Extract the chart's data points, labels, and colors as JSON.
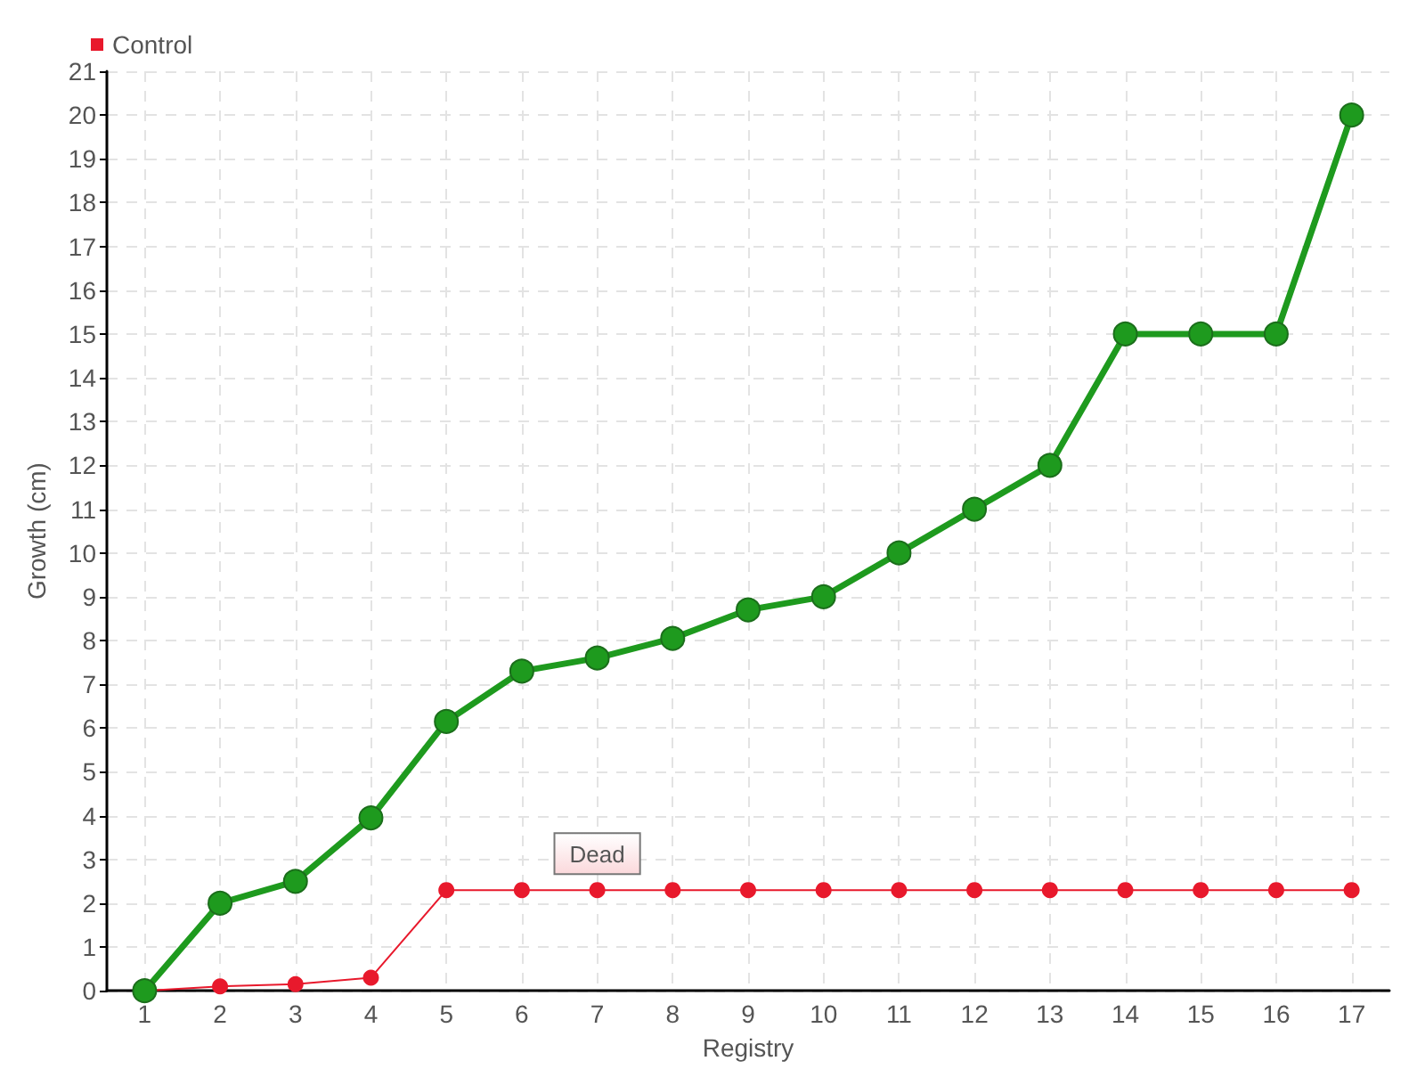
{
  "chart_data": {
    "type": "line",
    "xlabel": "Registry",
    "ylabel": "Growth (cm)",
    "categories": [
      "1",
      "2",
      "3",
      "4",
      "5",
      "6",
      "7",
      "8",
      "9",
      "10",
      "11",
      "12",
      "13",
      "14",
      "15",
      "16",
      "17"
    ],
    "series": [
      {
        "color": "#1e9a1e",
        "values": [
          0,
          2,
          2.5,
          3.95,
          6.15,
          7.3,
          7.6,
          8.05,
          8.7,
          9,
          10,
          11,
          12,
          15,
          15,
          15,
          20
        ]
      },
      {
        "name": "Control",
        "color": "#e8192c",
        "values": [
          0,
          0.1,
          0.15,
          0.3,
          2.3,
          2.3,
          2.3,
          2.3,
          2.3,
          2.3,
          2.3,
          2.3,
          2.3,
          2.3,
          2.3,
          2.3,
          2.3
        ]
      }
    ],
    "ylim": [
      0,
      21
    ],
    "yticks": [
      0,
      1,
      2,
      3,
      4,
      5,
      6,
      7,
      8,
      9,
      10,
      11,
      12,
      13,
      14,
      15,
      16,
      17,
      18,
      19,
      20,
      21
    ],
    "annotations": [
      {
        "text": "Dead",
        "x": "7",
        "y": 2.3
      }
    ],
    "grid": true,
    "legend": "top left",
    "marker": "circle",
    "line_style": "solid"
  }
}
